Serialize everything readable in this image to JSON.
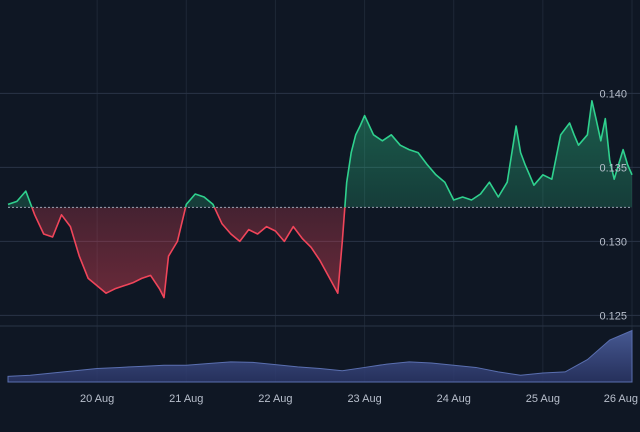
{
  "chart_data": {
    "type": "area",
    "baseline": 0.1323,
    "ylim": [
      0.1205,
      0.1455
    ],
    "y_ticks": [
      "0.140",
      "0.135",
      "0.130",
      "0.125"
    ],
    "y_tick_values": [
      0.14,
      0.135,
      0.13,
      0.125
    ],
    "x_tick_labels": [
      "20 Aug",
      "21 Aug",
      "22 Aug",
      "23 Aug",
      "24 Aug",
      "25 Aug",
      "26 Aug"
    ],
    "x_tick_values": [
      1,
      2,
      3,
      4,
      5,
      6,
      7
    ],
    "xlim": [
      0.0,
      7.0
    ],
    "grid": true,
    "colors": {
      "background": "#0f1724",
      "grid": "#2a3446",
      "up": "#2fd18e",
      "down": "#f0455a",
      "baseline": "#9aa3b3",
      "volume": "#3a4a7c",
      "label": "#b8bfcc"
    },
    "price_series": {
      "x": [
        0.0,
        0.1,
        0.2,
        0.3,
        0.4,
        0.5,
        0.6,
        0.7,
        0.8,
        0.9,
        1.0,
        1.1,
        1.2,
        1.3,
        1.4,
        1.5,
        1.6,
        1.7,
        1.75,
        1.8,
        1.9,
        2.0,
        2.1,
        2.2,
        2.3,
        2.4,
        2.5,
        2.6,
        2.7,
        2.8,
        2.9,
        3.0,
        3.1,
        3.2,
        3.3,
        3.4,
        3.5,
        3.6,
        3.7,
        3.75,
        3.8,
        3.85,
        3.9,
        3.95,
        4.0,
        4.1,
        4.2,
        4.3,
        4.4,
        4.5,
        4.6,
        4.7,
        4.8,
        4.9,
        5.0,
        5.1,
        5.2,
        5.3,
        5.4,
        5.5,
        5.6,
        5.7,
        5.75,
        5.8,
        5.85,
        5.9,
        6.0,
        6.1,
        6.2,
        6.3,
        6.35,
        6.4,
        6.5,
        6.55,
        6.6,
        6.65,
        6.7,
        6.75,
        6.8,
        6.85,
        6.9,
        6.95,
        7.0
      ],
      "y": [
        0.1325,
        0.1327,
        0.1334,
        0.1318,
        0.1305,
        0.1303,
        0.1318,
        0.131,
        0.129,
        0.1275,
        0.127,
        0.1265,
        0.1268,
        0.127,
        0.1272,
        0.1275,
        0.1277,
        0.1268,
        0.1262,
        0.129,
        0.13,
        0.1325,
        0.1332,
        0.133,
        0.1325,
        0.1312,
        0.1305,
        0.13,
        0.1308,
        0.1305,
        0.131,
        0.1307,
        0.13,
        0.131,
        0.1302,
        0.1296,
        0.1287,
        0.1276,
        0.1265,
        0.13,
        0.134,
        0.136,
        0.1372,
        0.1378,
        0.1385,
        0.1372,
        0.1368,
        0.1372,
        0.1365,
        0.1362,
        0.136,
        0.1352,
        0.1345,
        0.134,
        0.1328,
        0.133,
        0.1328,
        0.1332,
        0.134,
        0.133,
        0.134,
        0.1378,
        0.136,
        0.1352,
        0.1345,
        0.1338,
        0.1345,
        0.1342,
        0.1372,
        0.138,
        0.1372,
        0.1365,
        0.1372,
        0.1395,
        0.1382,
        0.1368,
        0.1383,
        0.1355,
        0.1342,
        0.1352,
        0.1362,
        0.1352,
        0.1345
      ]
    },
    "volume_series": {
      "x": [
        0.0,
        0.25,
        0.5,
        0.75,
        1.0,
        1.25,
        1.5,
        1.75,
        2.0,
        2.25,
        2.5,
        2.75,
        3.0,
        3.25,
        3.5,
        3.75,
        4.0,
        4.25,
        4.5,
        4.75,
        5.0,
        5.25,
        5.5,
        5.75,
        6.0,
        6.25,
        6.5,
        6.75,
        7.0
      ],
      "values": [
        0.1,
        0.12,
        0.16,
        0.2,
        0.24,
        0.26,
        0.28,
        0.3,
        0.3,
        0.33,
        0.36,
        0.35,
        0.31,
        0.27,
        0.24,
        0.2,
        0.26,
        0.32,
        0.36,
        0.34,
        0.3,
        0.26,
        0.18,
        0.12,
        0.16,
        0.18,
        0.4,
        0.75,
        0.92
      ]
    }
  }
}
